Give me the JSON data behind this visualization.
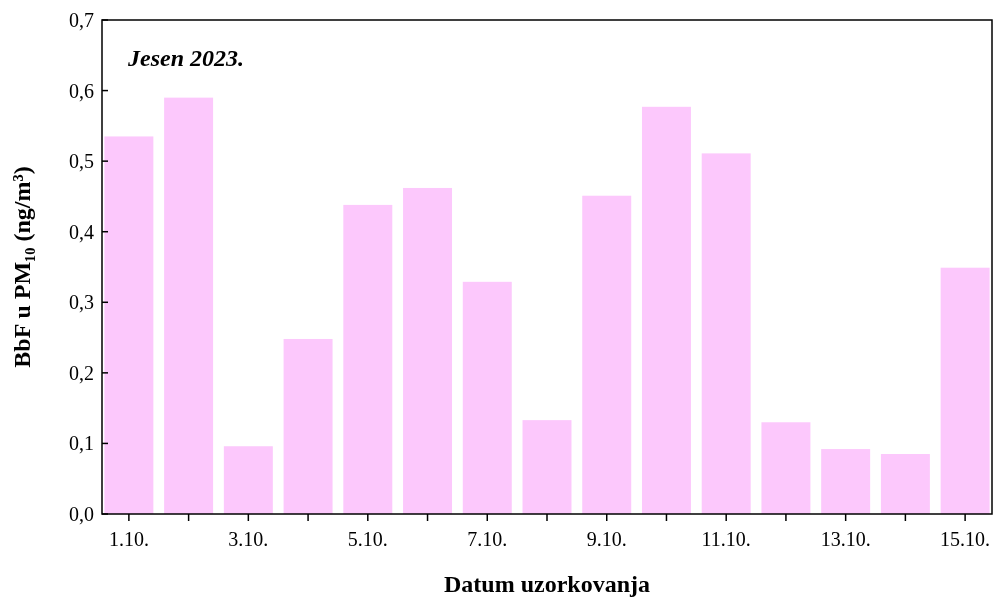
{
  "chart_data": {
    "type": "bar",
    "xlabel": "Datum uzorkovanja",
    "ylabel": "BbF u PM₁₀ (ng/m³)",
    "annotations": [
      "Jesen 2023."
    ],
    "categories": [
      "1.10.",
      null,
      "3.10.",
      null,
      "5.10.",
      null,
      "7.10.",
      null,
      "9.10.",
      null,
      "11.10.",
      null,
      "13.10.",
      null,
      "15.10."
    ],
    "values": [
      0.535,
      0.59,
      0.096,
      0.248,
      0.438,
      0.462,
      0.329,
      0.133,
      0.451,
      0.577,
      0.511,
      0.13,
      0.092,
      0.085,
      0.349
    ],
    "color": "#fcc8fc",
    "ylim": [
      0,
      0.7
    ],
    "yticks": [
      {
        "value": 0,
        "label": "0,0"
      },
      {
        "value": 0.1,
        "label": "0,1"
      },
      {
        "value": 0.2,
        "label": "0,2"
      },
      {
        "value": 0.3,
        "label": "0,3"
      },
      {
        "value": 0.4,
        "label": "0,4"
      },
      {
        "value": 0.5,
        "label": "0,5"
      },
      {
        "value": 0.6,
        "label": "0,6"
      },
      {
        "value": 0.7,
        "label": "0,7"
      }
    ],
    "grid": false
  }
}
